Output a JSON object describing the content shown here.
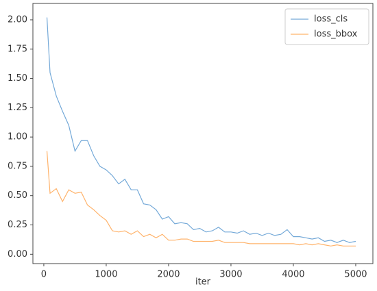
{
  "chart_data": {
    "type": "line",
    "xlabel": "iter",
    "x": [
      50,
      100,
      200,
      300,
      400,
      500,
      600,
      700,
      800,
      900,
      1000,
      1100,
      1200,
      1300,
      1400,
      1500,
      1600,
      1700,
      1800,
      1900,
      2000,
      2100,
      2200,
      2300,
      2400,
      2500,
      2600,
      2700,
      2800,
      2900,
      3000,
      3100,
      3200,
      3300,
      3400,
      3500,
      3600,
      3700,
      3800,
      3900,
      4000,
      4100,
      4200,
      4300,
      4400,
      4500,
      4600,
      4700,
      4800,
      4900,
      5000
    ],
    "series": [
      {
        "name": "loss_cls",
        "color": "#74a9d8",
        "values": [
          2.02,
          1.55,
          1.35,
          1.22,
          1.1,
          0.88,
          0.97,
          0.97,
          0.84,
          0.75,
          0.72,
          0.67,
          0.6,
          0.64,
          0.55,
          0.55,
          0.43,
          0.42,
          0.38,
          0.3,
          0.32,
          0.26,
          0.27,
          0.26,
          0.21,
          0.22,
          0.19,
          0.2,
          0.23,
          0.19,
          0.19,
          0.18,
          0.2,
          0.17,
          0.18,
          0.16,
          0.18,
          0.16,
          0.17,
          0.21,
          0.15,
          0.15,
          0.14,
          0.13,
          0.14,
          0.11,
          0.12,
          0.1,
          0.12,
          0.1,
          0.11
        ]
      },
      {
        "name": "loss_bbox",
        "color": "#ffb36b",
        "values": [
          0.88,
          0.52,
          0.56,
          0.45,
          0.55,
          0.52,
          0.53,
          0.42,
          0.38,
          0.33,
          0.29,
          0.2,
          0.19,
          0.2,
          0.17,
          0.2,
          0.15,
          0.17,
          0.14,
          0.17,
          0.12,
          0.12,
          0.13,
          0.13,
          0.11,
          0.11,
          0.11,
          0.11,
          0.12,
          0.1,
          0.1,
          0.1,
          0.1,
          0.09,
          0.09,
          0.09,
          0.09,
          0.09,
          0.09,
          0.09,
          0.09,
          0.08,
          0.09,
          0.08,
          0.09,
          0.08,
          0.07,
          0.08,
          0.07,
          0.07,
          0.07
        ]
      }
    ],
    "xlim": [
      -175,
      5275
    ],
    "xticks": [
      0,
      1000,
      2000,
      3000,
      4000,
      5000
    ],
    "ylim": [
      -0.08,
      2.14
    ],
    "yticks": [
      {
        "value": 0,
        "label": "0.00"
      },
      {
        "value": 0.25,
        "label": "0.25"
      },
      {
        "value": 0.5,
        "label": "0.50"
      },
      {
        "value": 0.75,
        "label": "0.75"
      },
      {
        "value": 1,
        "label": "1.00"
      },
      {
        "value": 1.25,
        "label": "1.25"
      },
      {
        "value": 1.5,
        "label": "1.50"
      },
      {
        "value": 1.75,
        "label": "1.75"
      },
      {
        "value": 2,
        "label": "2.00"
      }
    ],
    "legend": "upper right"
  }
}
